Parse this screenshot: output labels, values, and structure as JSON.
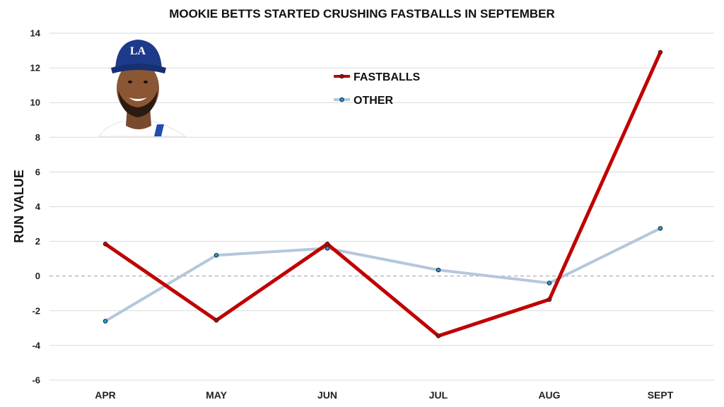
{
  "chart_data": {
    "type": "line",
    "title": "MOOKIE BETTS STARTED CRUSHING FASTBALLS  IN SEPTEMBER",
    "xlabel": "",
    "ylabel": "RUN VALUE",
    "categories": [
      "APR",
      "MAY",
      "JUN",
      "JUL",
      "AUG",
      "SEPT"
    ],
    "ylim": [
      -6,
      14
    ],
    "yticks": [
      "-6",
      "-4",
      "-2",
      "0",
      "2",
      "4",
      "6",
      "8",
      "10",
      "12",
      "14"
    ],
    "grid": true,
    "zero_line": "dashed",
    "legend_position": "top-center",
    "series": [
      {
        "name": "FASTBALLS",
        "color": "#c00000",
        "values": [
          1.85,
          -2.55,
          1.85,
          -3.45,
          -1.35,
          12.9
        ]
      },
      {
        "name": "OTHER",
        "color": "#b4c7dc",
        "values": [
          -2.6,
          1.2,
          1.6,
          0.35,
          -0.4,
          2.75
        ]
      }
    ],
    "image": {
      "subject": "player-headshot",
      "cap_logo_text": "LA",
      "cap_color": "#1e3a8a",
      "jersey_color": "#ffffff"
    }
  }
}
